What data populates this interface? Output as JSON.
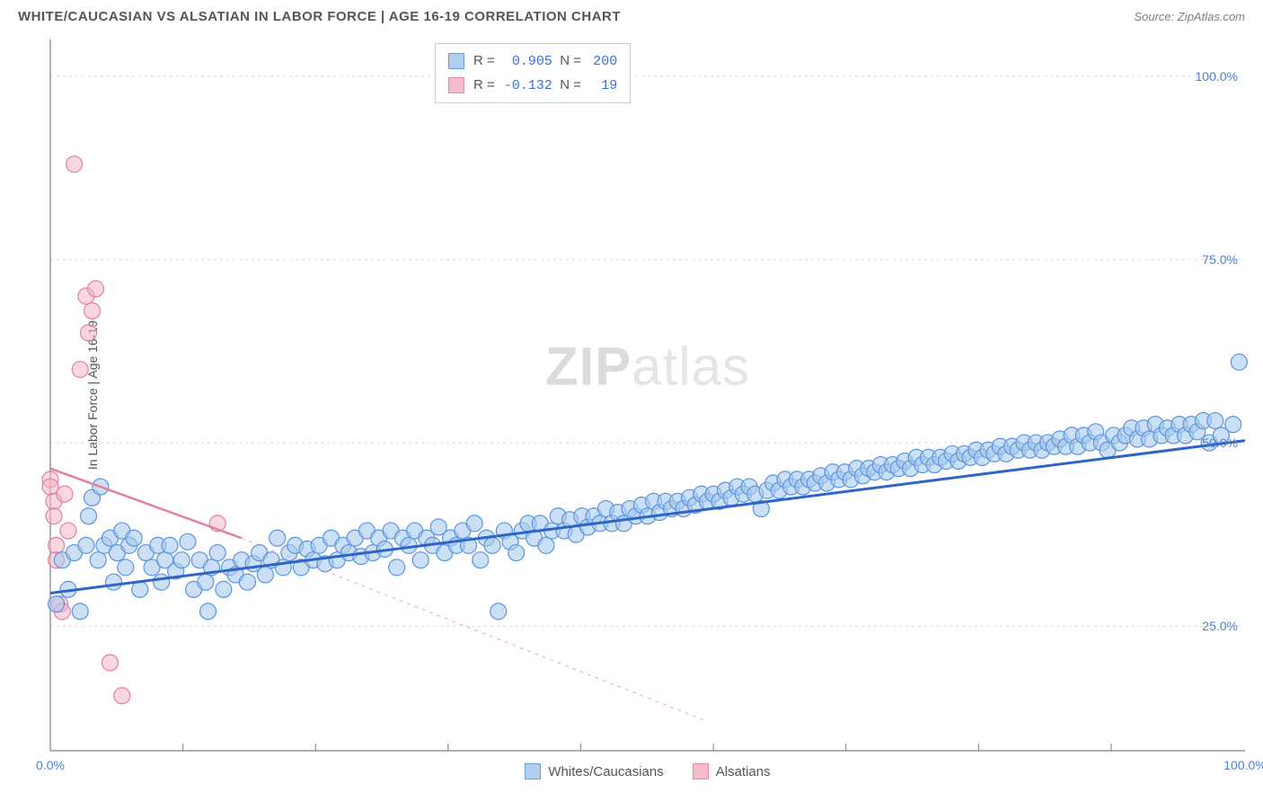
{
  "header": {
    "title": "WHITE/CAUCASIAN VS ALSATIAN IN LABOR FORCE | AGE 16-19 CORRELATION CHART",
    "source": "Source: ZipAtlas.com"
  },
  "watermark": {
    "part1": "ZIP",
    "part2": "atlas"
  },
  "chart": {
    "type": "scatter",
    "ylabel": "In Labor Force | Age 16-19",
    "xlim": [
      0,
      100
    ],
    "ylim": [
      8,
      105
    ],
    "xtick_labels": [
      {
        "pos": 0,
        "label": "0.0%"
      },
      {
        "pos": 100,
        "label": "100.0%"
      }
    ],
    "x_minor_ticks": [
      11.1,
      22.2,
      33.3,
      44.4,
      55.5,
      66.6,
      77.7,
      88.8
    ],
    "ytick_labels": [
      {
        "pos": 25,
        "label": "25.0%"
      },
      {
        "pos": 50,
        "label": "50.0%"
      },
      {
        "pos": 75,
        "label": "75.0%"
      },
      {
        "pos": 100,
        "label": "100.0%"
      }
    ],
    "grid_color": "#d8d8d8",
    "axis_color": "#808080",
    "background_color": "#ffffff",
    "series": {
      "blue": {
        "label": "Whites/Caucasians",
        "fill": "#a9c9ef",
        "stroke": "#5a94df",
        "fill_opacity": 0.6,
        "marker_r": 9,
        "trend": {
          "solid": [
            [
              0,
              29.5
            ],
            [
              100,
              50.3
            ]
          ],
          "color": "#2d64c8",
          "width": 3
        },
        "R": "0.905",
        "N": "200"
      },
      "pink": {
        "label": "Alsatians",
        "fill": "#f2b6c6",
        "stroke": "#e77da0",
        "fill_opacity": 0.55,
        "marker_r": 9,
        "trend": {
          "solid": [
            [
              0,
              46.5
            ],
            [
              16,
              37
            ]
          ],
          "dashed": [
            [
              16,
              37
            ],
            [
              55,
              12
            ]
          ],
          "color": "#e77da0",
          "width": 2.5
        },
        "R": "-0.132",
        "N": "19"
      }
    },
    "stats_box": {
      "rows": [
        {
          "series": "blue"
        },
        {
          "series": "pink"
        }
      ]
    },
    "bottom_legend": [
      {
        "series": "blue"
      },
      {
        "series": "pink"
      }
    ],
    "blue_points": [
      [
        0.5,
        28
      ],
      [
        1,
        34
      ],
      [
        1.5,
        30
      ],
      [
        2,
        35
      ],
      [
        2.5,
        27
      ],
      [
        3,
        36
      ],
      [
        3.2,
        40
      ],
      [
        3.5,
        42.5
      ],
      [
        4,
        34
      ],
      [
        4.2,
        44
      ],
      [
        4.5,
        36
      ],
      [
        5,
        37
      ],
      [
        5.3,
        31
      ],
      [
        5.6,
        35
      ],
      [
        6,
        38
      ],
      [
        6.3,
        33
      ],
      [
        6.6,
        36
      ],
      [
        7,
        37
      ],
      [
        7.5,
        30
      ],
      [
        8,
        35
      ],
      [
        8.5,
        33
      ],
      [
        9,
        36
      ],
      [
        9.3,
        31
      ],
      [
        9.6,
        34
      ],
      [
        10,
        36
      ],
      [
        10.5,
        32.5
      ],
      [
        11,
        34
      ],
      [
        11.5,
        36.5
      ],
      [
        12,
        30
      ],
      [
        12.5,
        34
      ],
      [
        13,
        31
      ],
      [
        13.2,
        27
      ],
      [
        13.5,
        33
      ],
      [
        14,
        35
      ],
      [
        14.5,
        30
      ],
      [
        15,
        33
      ],
      [
        15.5,
        32
      ],
      [
        16,
        34
      ],
      [
        16.5,
        31
      ],
      [
        17,
        33.5
      ],
      [
        17.5,
        35
      ],
      [
        18,
        32
      ],
      [
        18.5,
        34
      ],
      [
        19,
        37
      ],
      [
        19.5,
        33
      ],
      [
        20,
        35
      ],
      [
        20.5,
        36
      ],
      [
        21,
        33
      ],
      [
        21.5,
        35.5
      ],
      [
        22,
        34
      ],
      [
        22.5,
        36
      ],
      [
        23,
        33.5
      ],
      [
        23.5,
        37
      ],
      [
        24,
        34
      ],
      [
        24.5,
        36
      ],
      [
        25,
        35
      ],
      [
        25.5,
        37
      ],
      [
        26,
        34.5
      ],
      [
        26.5,
        38
      ],
      [
        27,
        35
      ],
      [
        27.5,
        37
      ],
      [
        28,
        35.5
      ],
      [
        28.5,
        38
      ],
      [
        29,
        33
      ],
      [
        29.5,
        37
      ],
      [
        30,
        36
      ],
      [
        30.5,
        38
      ],
      [
        31,
        34
      ],
      [
        31.5,
        37
      ],
      [
        32,
        36
      ],
      [
        32.5,
        38.5
      ],
      [
        33,
        35
      ],
      [
        33.5,
        37
      ],
      [
        34,
        36
      ],
      [
        34.5,
        38
      ],
      [
        35,
        36
      ],
      [
        35.5,
        39
      ],
      [
        36,
        34
      ],
      [
        36.5,
        37
      ],
      [
        37,
        36
      ],
      [
        37.5,
        27
      ],
      [
        38,
        38
      ],
      [
        38.5,
        36.5
      ],
      [
        39,
        35
      ],
      [
        39.5,
        38
      ],
      [
        40,
        39
      ],
      [
        40.5,
        37
      ],
      [
        41,
        39
      ],
      [
        41.5,
        36
      ],
      [
        42,
        38
      ],
      [
        42.5,
        40
      ],
      [
        43,
        38
      ],
      [
        43.5,
        39.5
      ],
      [
        44,
        37.5
      ],
      [
        44.5,
        40
      ],
      [
        45,
        38.5
      ],
      [
        45.5,
        40
      ],
      [
        46,
        39
      ],
      [
        46.5,
        41
      ],
      [
        47,
        39
      ],
      [
        47.5,
        40.5
      ],
      [
        48,
        39
      ],
      [
        48.5,
        41
      ],
      [
        49,
        40
      ],
      [
        49.5,
        41.5
      ],
      [
        50,
        40
      ],
      [
        50.5,
        42
      ],
      [
        51,
        40.5
      ],
      [
        51.5,
        42
      ],
      [
        52,
        41
      ],
      [
        52.5,
        42
      ],
      [
        53,
        41
      ],
      [
        53.5,
        42.5
      ],
      [
        54,
        41.5
      ],
      [
        54.5,
        43
      ],
      [
        55,
        42
      ],
      [
        55.5,
        43
      ],
      [
        56,
        42
      ],
      [
        56.5,
        43.5
      ],
      [
        57,
        42.5
      ],
      [
        57.5,
        44
      ],
      [
        58,
        43
      ],
      [
        58.5,
        44
      ],
      [
        59,
        43
      ],
      [
        59.5,
        41
      ],
      [
        60,
        43.5
      ],
      [
        60.5,
        44.5
      ],
      [
        61,
        43.5
      ],
      [
        61.5,
        45
      ],
      [
        62,
        44
      ],
      [
        62.5,
        45
      ],
      [
        63,
        44
      ],
      [
        63.5,
        45
      ],
      [
        64,
        44.5
      ],
      [
        64.5,
        45.5
      ],
      [
        65,
        44.5
      ],
      [
        65.5,
        46
      ],
      [
        66,
        45
      ],
      [
        66.5,
        46
      ],
      [
        67,
        45
      ],
      [
        67.5,
        46.5
      ],
      [
        68,
        45.5
      ],
      [
        68.5,
        46.5
      ],
      [
        69,
        46
      ],
      [
        69.5,
        47
      ],
      [
        70,
        46
      ],
      [
        70.5,
        47
      ],
      [
        71,
        46.5
      ],
      [
        71.5,
        47.5
      ],
      [
        72,
        46.5
      ],
      [
        72.5,
        48
      ],
      [
        73,
        47
      ],
      [
        73.5,
        48
      ],
      [
        74,
        47
      ],
      [
        74.5,
        48
      ],
      [
        75,
        47.5
      ],
      [
        75.5,
        48.5
      ],
      [
        76,
        47.5
      ],
      [
        76.5,
        48.5
      ],
      [
        77,
        48
      ],
      [
        77.5,
        49
      ],
      [
        78,
        48
      ],
      [
        78.5,
        49
      ],
      [
        79,
        48.5
      ],
      [
        79.5,
        49.5
      ],
      [
        80,
        48.5
      ],
      [
        80.5,
        49.5
      ],
      [
        81,
        49
      ],
      [
        81.5,
        50
      ],
      [
        82,
        49
      ],
      [
        82.5,
        50
      ],
      [
        83,
        49
      ],
      [
        83.5,
        50
      ],
      [
        84,
        49.5
      ],
      [
        84.5,
        50.5
      ],
      [
        85,
        49.5
      ],
      [
        85.5,
        51
      ],
      [
        86,
        49.5
      ],
      [
        86.5,
        51
      ],
      [
        87,
        50
      ],
      [
        87.5,
        51.5
      ],
      [
        88,
        50
      ],
      [
        88.5,
        49
      ],
      [
        89,
        51
      ],
      [
        89.5,
        50
      ],
      [
        90,
        51
      ],
      [
        90.5,
        52
      ],
      [
        91,
        50.5
      ],
      [
        91.5,
        52
      ],
      [
        92,
        50.5
      ],
      [
        92.5,
        52.5
      ],
      [
        93,
        51
      ],
      [
        93.5,
        52
      ],
      [
        94,
        51
      ],
      [
        94.5,
        52.5
      ],
      [
        95,
        51
      ],
      [
        95.5,
        52.5
      ],
      [
        96,
        51.5
      ],
      [
        96.5,
        53
      ],
      [
        97,
        50
      ],
      [
        97.5,
        53
      ],
      [
        98,
        51
      ],
      [
        99,
        52.5
      ],
      [
        99.5,
        61
      ]
    ],
    "pink_points": [
      [
        0,
        45
      ],
      [
        0,
        44
      ],
      [
        0.3,
        42
      ],
      [
        0.3,
        40
      ],
      [
        0.5,
        36
      ],
      [
        0.5,
        34
      ],
      [
        0.8,
        28
      ],
      [
        1,
        27
      ],
      [
        1.2,
        43
      ],
      [
        1.5,
        38
      ],
      [
        2,
        88
      ],
      [
        2.5,
        60
      ],
      [
        3,
        70
      ],
      [
        3.2,
        65
      ],
      [
        3.5,
        68
      ],
      [
        3.8,
        71
      ],
      [
        5,
        20
      ],
      [
        6,
        15.5
      ],
      [
        14,
        39
      ]
    ]
  }
}
